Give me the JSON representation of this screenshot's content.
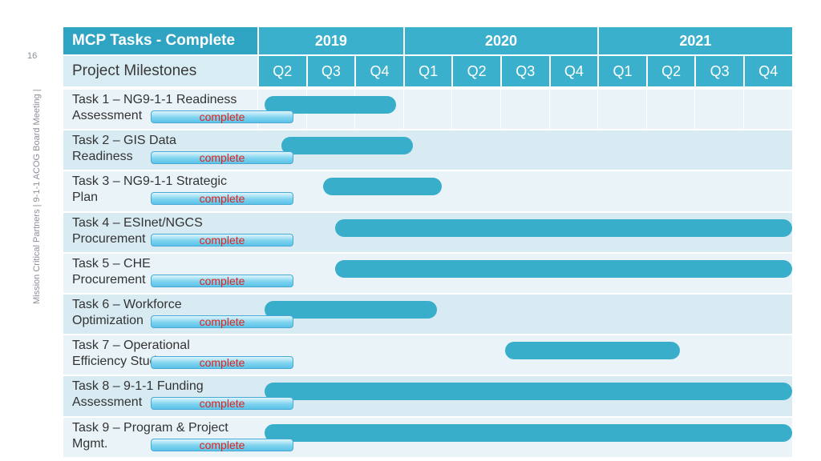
{
  "side_label": "Mission Critical Partners  |  9-1-1 ACOG Board Meeting  |",
  "page_number": "16",
  "header": {
    "title": "MCP Tasks - Complete",
    "subtitle": "Project Milestones",
    "years": [
      {
        "label": "2019",
        "quarters": [
          "Q2",
          "Q3",
          "Q4"
        ]
      },
      {
        "label": "2020",
        "quarters": [
          "Q1",
          "Q2",
          "Q3",
          "Q4"
        ]
      },
      {
        "label": "2021",
        "quarters": [
          "Q1",
          "Q2",
          "Q3",
          "Q4"
        ]
      }
    ]
  },
  "colors": {
    "bar": "#39aecb",
    "header": "#2ea3c2",
    "status_text": "#e0231c"
  },
  "tasks": [
    {
      "line1": "Task 1 – NG9-1-1 Readiness",
      "line2": "Assessment",
      "status": "complete",
      "start_q": 0.15,
      "end_q": 2.85
    },
    {
      "line1": "Task 2 – GIS Data",
      "line2": "Readiness",
      "status": "complete",
      "start_q": 0.5,
      "end_q": 3.2
    },
    {
      "line1": "Task 3 – NG9-1-1 Strategic",
      "line2": "Plan",
      "status": "complete",
      "start_q": 1.35,
      "end_q": 3.8
    },
    {
      "line1": "Task 4 – ESInet/NGCS",
      "line2": "Procurement",
      "status": "complete",
      "start_q": 1.6,
      "end_q": 11.0
    },
    {
      "line1": "Task 5 – CHE",
      "line2": "Procurement",
      "status": "complete",
      "start_q": 1.6,
      "end_q": 11.0
    },
    {
      "line1": "Task 6 – Workforce",
      "line2": "Optimization",
      "status": "complete",
      "start_q": 0.15,
      "end_q": 3.7
    },
    {
      "line1": "Task 7 – Operational",
      "line2": "Efficiency Study",
      "status": "complete",
      "start_q": 5.1,
      "end_q": 8.7
    },
    {
      "line1": "Task 8 – 9-1-1 Funding",
      "line2": "Assessment",
      "status": "complete",
      "start_q": 0.15,
      "end_q": 11.0
    },
    {
      "line1": "Task 9 – Program & Project",
      "line2": "Mgmt.",
      "status": "complete",
      "start_q": 0.15,
      "end_q": 11.0
    }
  ]
}
